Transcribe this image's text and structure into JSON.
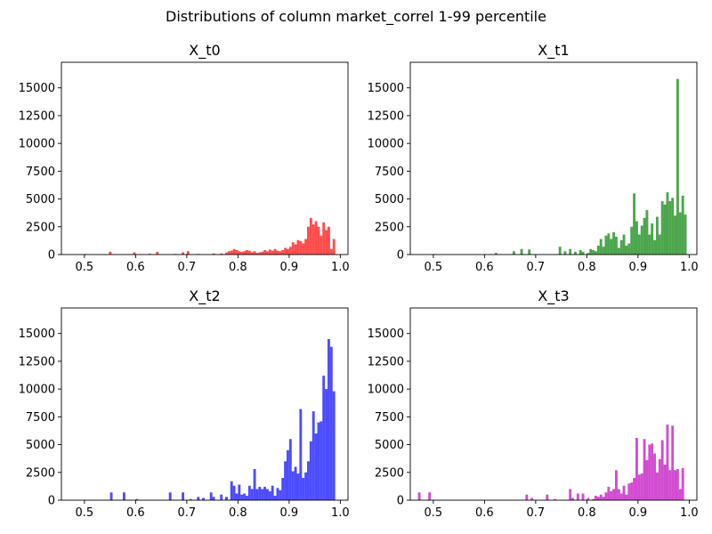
{
  "figure_title": "Distributions of column market_correl 1-99 percentile",
  "chart_data": [
    {
      "type": "bar",
      "title": "X_t0",
      "color": "#ff0000",
      "opacity": 0.7,
      "xlim": [
        0.455,
        1.015
      ],
      "ylim": [
        0,
        17300
      ],
      "xticks": [
        0.5,
        0.6,
        0.7,
        0.8,
        0.9,
        1.0
      ],
      "xtick_labels": [
        "0.5",
        "0.6",
        "0.7",
        "0.8",
        "0.9",
        "1.0"
      ],
      "yticks": [
        0,
        2500,
        5000,
        7500,
        10000,
        12500,
        15000
      ],
      "ytick_labels": [
        "0",
        "2500",
        "5000",
        "7500",
        "10000",
        "12500",
        "15000"
      ],
      "bin_width": 0.005,
      "bins": [
        [
          0.5,
          50
        ],
        [
          0.548,
          250
        ],
        [
          0.595,
          200
        ],
        [
          0.625,
          80
        ],
        [
          0.64,
          250
        ],
        [
          0.675,
          60
        ],
        [
          0.69,
          200
        ],
        [
          0.7,
          300
        ],
        [
          0.72,
          60
        ],
        [
          0.75,
          100
        ],
        [
          0.765,
          100
        ],
        [
          0.775,
          180
        ],
        [
          0.78,
          300
        ],
        [
          0.785,
          350
        ],
        [
          0.79,
          500
        ],
        [
          0.795,
          400
        ],
        [
          0.8,
          300
        ],
        [
          0.805,
          250
        ],
        [
          0.81,
          300
        ],
        [
          0.815,
          400
        ],
        [
          0.82,
          350
        ],
        [
          0.825,
          200
        ],
        [
          0.83,
          300
        ],
        [
          0.835,
          150
        ],
        [
          0.84,
          200
        ],
        [
          0.845,
          250
        ],
        [
          0.85,
          400
        ],
        [
          0.855,
          300
        ],
        [
          0.86,
          450
        ],
        [
          0.865,
          350
        ],
        [
          0.87,
          500
        ],
        [
          0.875,
          350
        ],
        [
          0.88,
          300
        ],
        [
          0.885,
          400
        ],
        [
          0.89,
          600
        ],
        [
          0.895,
          500
        ],
        [
          0.9,
          700
        ],
        [
          0.905,
          1100
        ],
        [
          0.91,
          900
        ],
        [
          0.915,
          1300
        ],
        [
          0.92,
          1200
        ],
        [
          0.925,
          1000
        ],
        [
          0.93,
          1400
        ],
        [
          0.935,
          2500
        ],
        [
          0.94,
          3300
        ],
        [
          0.945,
          2700
        ],
        [
          0.95,
          3000
        ],
        [
          0.955,
          2500
        ],
        [
          0.96,
          1700
        ],
        [
          0.965,
          2900
        ],
        [
          0.97,
          2200
        ],
        [
          0.975,
          2500
        ],
        [
          0.98,
          500
        ],
        [
          0.985,
          1400
        ]
      ]
    },
    {
      "type": "bar",
      "title": "X_t1",
      "color": "#008000",
      "opacity": 0.7,
      "xlim": [
        0.455,
        1.015
      ],
      "ylim": [
        0,
        17300
      ],
      "xticks": [
        0.5,
        0.6,
        0.7,
        0.8,
        0.9,
        1.0
      ],
      "xtick_labels": [
        "0.5",
        "0.6",
        "0.7",
        "0.8",
        "0.9",
        "1.0"
      ],
      "yticks": [
        0,
        2500,
        5000,
        7500,
        10000,
        12500,
        15000
      ],
      "ytick_labels": [
        "0",
        "2500",
        "5000",
        "7500",
        "10000",
        "12500",
        "15000"
      ],
      "bin_width": 0.005,
      "bins": [
        [
          0.5,
          50
        ],
        [
          0.62,
          150
        ],
        [
          0.655,
          300
        ],
        [
          0.67,
          500
        ],
        [
          0.685,
          450
        ],
        [
          0.745,
          700
        ],
        [
          0.755,
          300
        ],
        [
          0.765,
          500
        ],
        [
          0.775,
          250
        ],
        [
          0.785,
          400
        ],
        [
          0.79,
          250
        ],
        [
          0.8,
          150
        ],
        [
          0.805,
          500
        ],
        [
          0.81,
          400
        ],
        [
          0.815,
          300
        ],
        [
          0.82,
          800
        ],
        [
          0.825,
          1400
        ],
        [
          0.83,
          700
        ],
        [
          0.835,
          1700
        ],
        [
          0.84,
          1900
        ],
        [
          0.845,
          1400
        ],
        [
          0.85,
          2000
        ],
        [
          0.855,
          1600
        ],
        [
          0.86,
          600
        ],
        [
          0.865,
          1300
        ],
        [
          0.87,
          1800
        ],
        [
          0.875,
          800
        ],
        [
          0.88,
          1000
        ],
        [
          0.885,
          2500
        ],
        [
          0.89,
          5500
        ],
        [
          0.895,
          3000
        ],
        [
          0.9,
          1800
        ],
        [
          0.905,
          2600
        ],
        [
          0.91,
          3300
        ],
        [
          0.915,
          4000
        ],
        [
          0.92,
          1800
        ],
        [
          0.925,
          2800
        ],
        [
          0.93,
          1300
        ],
        [
          0.935,
          3400
        ],
        [
          0.94,
          1800
        ],
        [
          0.945,
          4800
        ],
        [
          0.95,
          4500
        ],
        [
          0.955,
          5600
        ],
        [
          0.96,
          4800
        ],
        [
          0.965,
          5100
        ],
        [
          0.97,
          3500
        ],
        [
          0.975,
          15800
        ],
        [
          0.98,
          3800
        ],
        [
          0.985,
          5300
        ],
        [
          0.99,
          3600
        ]
      ]
    },
    {
      "type": "bar",
      "title": "X_t2",
      "color": "#0000ff",
      "opacity": 0.7,
      "xlim": [
        0.455,
        1.015
      ],
      "ylim": [
        0,
        17300
      ],
      "xticks": [
        0.5,
        0.6,
        0.7,
        0.8,
        0.9,
        1.0
      ],
      "xtick_labels": [
        "0.5",
        "0.6",
        "0.7",
        "0.8",
        "0.9",
        "1.0"
      ],
      "yticks": [
        0,
        2500,
        5000,
        7500,
        10000,
        12500,
        15000
      ],
      "ytick_labels": [
        "0",
        "2500",
        "5000",
        "7500",
        "10000",
        "12500",
        "15000"
      ],
      "bin_width": 0.005,
      "bins": [
        [
          0.55,
          700
        ],
        [
          0.575,
          700
        ],
        [
          0.6,
          100
        ],
        [
          0.665,
          700
        ],
        [
          0.69,
          700
        ],
        [
          0.705,
          100
        ],
        [
          0.72,
          300
        ],
        [
          0.73,
          200
        ],
        [
          0.745,
          700
        ],
        [
          0.75,
          300
        ],
        [
          0.765,
          500
        ],
        [
          0.775,
          300
        ],
        [
          0.785,
          1700
        ],
        [
          0.79,
          1300
        ],
        [
          0.795,
          600
        ],
        [
          0.8,
          1400
        ],
        [
          0.805,
          500
        ],
        [
          0.81,
          600
        ],
        [
          0.815,
          400
        ],
        [
          0.82,
          1300
        ],
        [
          0.825,
          1000
        ],
        [
          0.83,
          2800
        ],
        [
          0.835,
          1000
        ],
        [
          0.84,
          1200
        ],
        [
          0.845,
          1000
        ],
        [
          0.85,
          1200
        ],
        [
          0.855,
          1000
        ],
        [
          0.86,
          800
        ],
        [
          0.865,
          1300
        ],
        [
          0.87,
          400
        ],
        [
          0.875,
          1100
        ],
        [
          0.88,
          900
        ],
        [
          0.885,
          2000
        ],
        [
          0.89,
          3500
        ],
        [
          0.895,
          4500
        ],
        [
          0.9,
          5500
        ],
        [
          0.905,
          2600
        ],
        [
          0.91,
          3000
        ],
        [
          0.915,
          2400
        ],
        [
          0.92,
          8200
        ],
        [
          0.925,
          2000
        ],
        [
          0.93,
          2500
        ],
        [
          0.935,
          3500
        ],
        [
          0.94,
          5300
        ],
        [
          0.945,
          8000
        ],
        [
          0.95,
          6000
        ],
        [
          0.955,
          7000
        ],
        [
          0.96,
          7100
        ],
        [
          0.965,
          11200
        ],
        [
          0.97,
          10000
        ],
        [
          0.975,
          14500
        ],
        [
          0.98,
          13800
        ],
        [
          0.985,
          9800
        ]
      ]
    },
    {
      "type": "bar",
      "title": "X_t3",
      "color": "#bf00bf",
      "opacity": 0.7,
      "xlim": [
        0.455,
        1.015
      ],
      "ylim": [
        0,
        17300
      ],
      "xticks": [
        0.5,
        0.6,
        0.7,
        0.8,
        0.9,
        1.0
      ],
      "xtick_labels": [
        "0.5",
        "0.6",
        "0.7",
        "0.8",
        "0.9",
        "1.0"
      ],
      "yticks": [
        0,
        2500,
        5000,
        7500,
        10000,
        12500,
        15000
      ],
      "ytick_labels": [
        "0",
        "2500",
        "5000",
        "7500",
        "10000",
        "12500",
        "15000"
      ],
      "bin_width": 0.005,
      "bins": [
        [
          0.47,
          700
        ],
        [
          0.49,
          700
        ],
        [
          0.68,
          500
        ],
        [
          0.69,
          200
        ],
        [
          0.72,
          500
        ],
        [
          0.735,
          100
        ],
        [
          0.765,
          1000
        ],
        [
          0.77,
          200
        ],
        [
          0.78,
          600
        ],
        [
          0.79,
          600
        ],
        [
          0.8,
          200
        ],
        [
          0.81,
          100
        ],
        [
          0.815,
          400
        ],
        [
          0.82,
          300
        ],
        [
          0.825,
          500
        ],
        [
          0.83,
          300
        ],
        [
          0.835,
          700
        ],
        [
          0.84,
          1200
        ],
        [
          0.845,
          800
        ],
        [
          0.85,
          1000
        ],
        [
          0.855,
          2700
        ],
        [
          0.86,
          1000
        ],
        [
          0.865,
          600
        ],
        [
          0.87,
          1300
        ],
        [
          0.875,
          500
        ],
        [
          0.88,
          1500
        ],
        [
          0.885,
          1600
        ],
        [
          0.89,
          2000
        ],
        [
          0.895,
          5600
        ],
        [
          0.9,
          2300
        ],
        [
          0.905,
          2400
        ],
        [
          0.91,
          5500
        ],
        [
          0.915,
          3600
        ],
        [
          0.92,
          5000
        ],
        [
          0.925,
          5100
        ],
        [
          0.93,
          4200
        ],
        [
          0.935,
          2500
        ],
        [
          0.94,
          3700
        ],
        [
          0.945,
          5400
        ],
        [
          0.95,
          3200
        ],
        [
          0.955,
          6800
        ],
        [
          0.96,
          2700
        ],
        [
          0.965,
          6700
        ],
        [
          0.97,
          2700
        ],
        [
          0.975,
          2800
        ],
        [
          0.98,
          1000
        ],
        [
          0.985,
          2900
        ]
      ]
    }
  ]
}
